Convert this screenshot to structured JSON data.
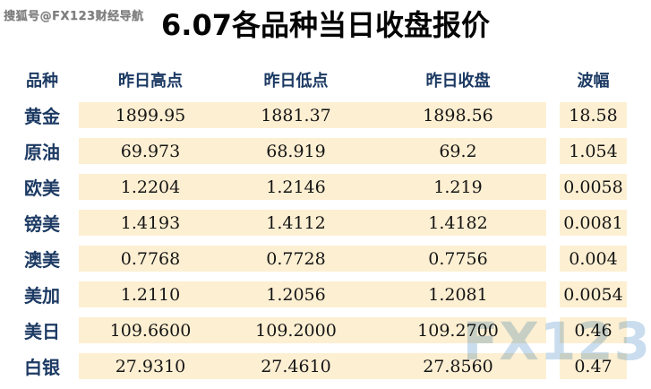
{
  "title": "6.07各品种当日收盘报价",
  "watermarks": {
    "top_left": "搜狐号@FX123财经导航",
    "bottom_right": "FX123"
  },
  "table": {
    "columns": [
      "品种",
      "昨日高点",
      "昨日低点",
      "昨日收盘",
      "波幅"
    ],
    "rows": [
      {
        "name": "黄金",
        "high": "1899.95",
        "low": "1881.37",
        "close": "1898.56",
        "range": "18.58"
      },
      {
        "name": "原油",
        "high": "69.973",
        "low": "68.919",
        "close": "69.2",
        "range": "1.054"
      },
      {
        "name": "欧美",
        "high": "1.2204",
        "low": "1.2146",
        "close": "1.219",
        "range": "0.0058"
      },
      {
        "name": "镑美",
        "high": "1.4193",
        "low": "1.4112",
        "close": "1.4182",
        "range": "0.0081"
      },
      {
        "name": "澳美",
        "high": "0.7768",
        "low": "0.7728",
        "close": "0.7756",
        "range": "0.004"
      },
      {
        "name": "美加",
        "high": "1.2110",
        "low": "1.2056",
        "close": "1.2081",
        "range": "0.0054"
      },
      {
        "name": "美日",
        "high": "109.6600",
        "low": "109.2000",
        "close": "109.2700",
        "range": "0.46"
      },
      {
        "name": "白银",
        "high": "27.9310",
        "low": "27.4610",
        "close": "27.8560",
        "range": "0.47"
      }
    ]
  },
  "chart_data": {
    "type": "table",
    "title": "6.07各品种当日收盘报价",
    "columns": [
      "品种",
      "昨日高点",
      "昨日低点",
      "昨日收盘",
      "波幅"
    ],
    "rows": [
      [
        "黄金",
        "1899.95",
        "1881.37",
        "1898.56",
        "18.58"
      ],
      [
        "原油",
        "69.973",
        "68.919",
        "69.2",
        "1.054"
      ],
      [
        "欧美",
        "1.2204",
        "1.2146",
        "1.219",
        "0.0058"
      ],
      [
        "镑美",
        "1.4193",
        "1.4112",
        "1.4182",
        "0.0081"
      ],
      [
        "澳美",
        "0.7768",
        "0.7728",
        "0.7756",
        "0.004"
      ],
      [
        "美加",
        "1.2110",
        "1.2056",
        "1.2081",
        "0.0054"
      ],
      [
        "美日",
        "109.6600",
        "109.2000",
        "109.2700",
        "0.46"
      ],
      [
        "白银",
        "27.9310",
        "27.4610",
        "27.8560",
        "0.47"
      ]
    ]
  },
  "colors": {
    "row_background": "#fdefd2",
    "header_text": "#1c3a63",
    "value_text": "#151515",
    "watermark_gray": "#7d7d7d",
    "watermark_blue": "#c9ddef",
    "title_text": "#050505"
  }
}
